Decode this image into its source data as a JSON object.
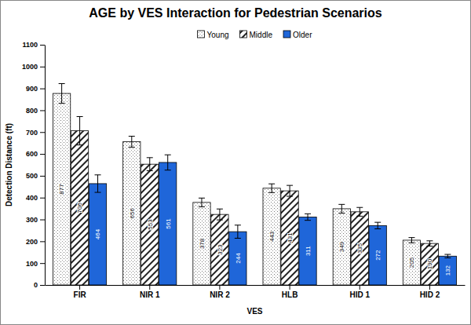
{
  "chart_data": {
    "type": "bar",
    "title": "AGE by VES Interaction for Pedestrian Scenarios",
    "x_label": "VES",
    "y_label": "Detection Distance (ft)",
    "categories": [
      "FIR",
      "NIR 1",
      "NIR 2",
      "HLB",
      "HID 1",
      "HID 2"
    ],
    "series": [
      {
        "name": "Young",
        "color": "#ffffff",
        "values": [
          877,
          656,
          378,
          443,
          349,
          205
        ],
        "errors": [
          45,
          25,
          20,
          20,
          20,
          12
        ]
      },
      {
        "name": "Middle",
        "color": "#ffffff",
        "values": [
          706,
          553,
          323,
          431,
          335,
          190
        ],
        "errors": [
          65,
          30,
          25,
          25,
          20,
          12
        ]
      },
      {
        "name": "Older",
        "color": "#1f66d9",
        "values": [
          464,
          561,
          244,
          311,
          272,
          132
        ],
        "errors": [
          40,
          35,
          30,
          15,
          15,
          8
        ]
      }
    ],
    "ylim": [
      0,
      1100
    ],
    "yticks": [
      0,
      100,
      200,
      300,
      400,
      500,
      600,
      700,
      800,
      900,
      1000,
      1100
    ],
    "grid": false,
    "legend": "top",
    "data_labels": true
  }
}
